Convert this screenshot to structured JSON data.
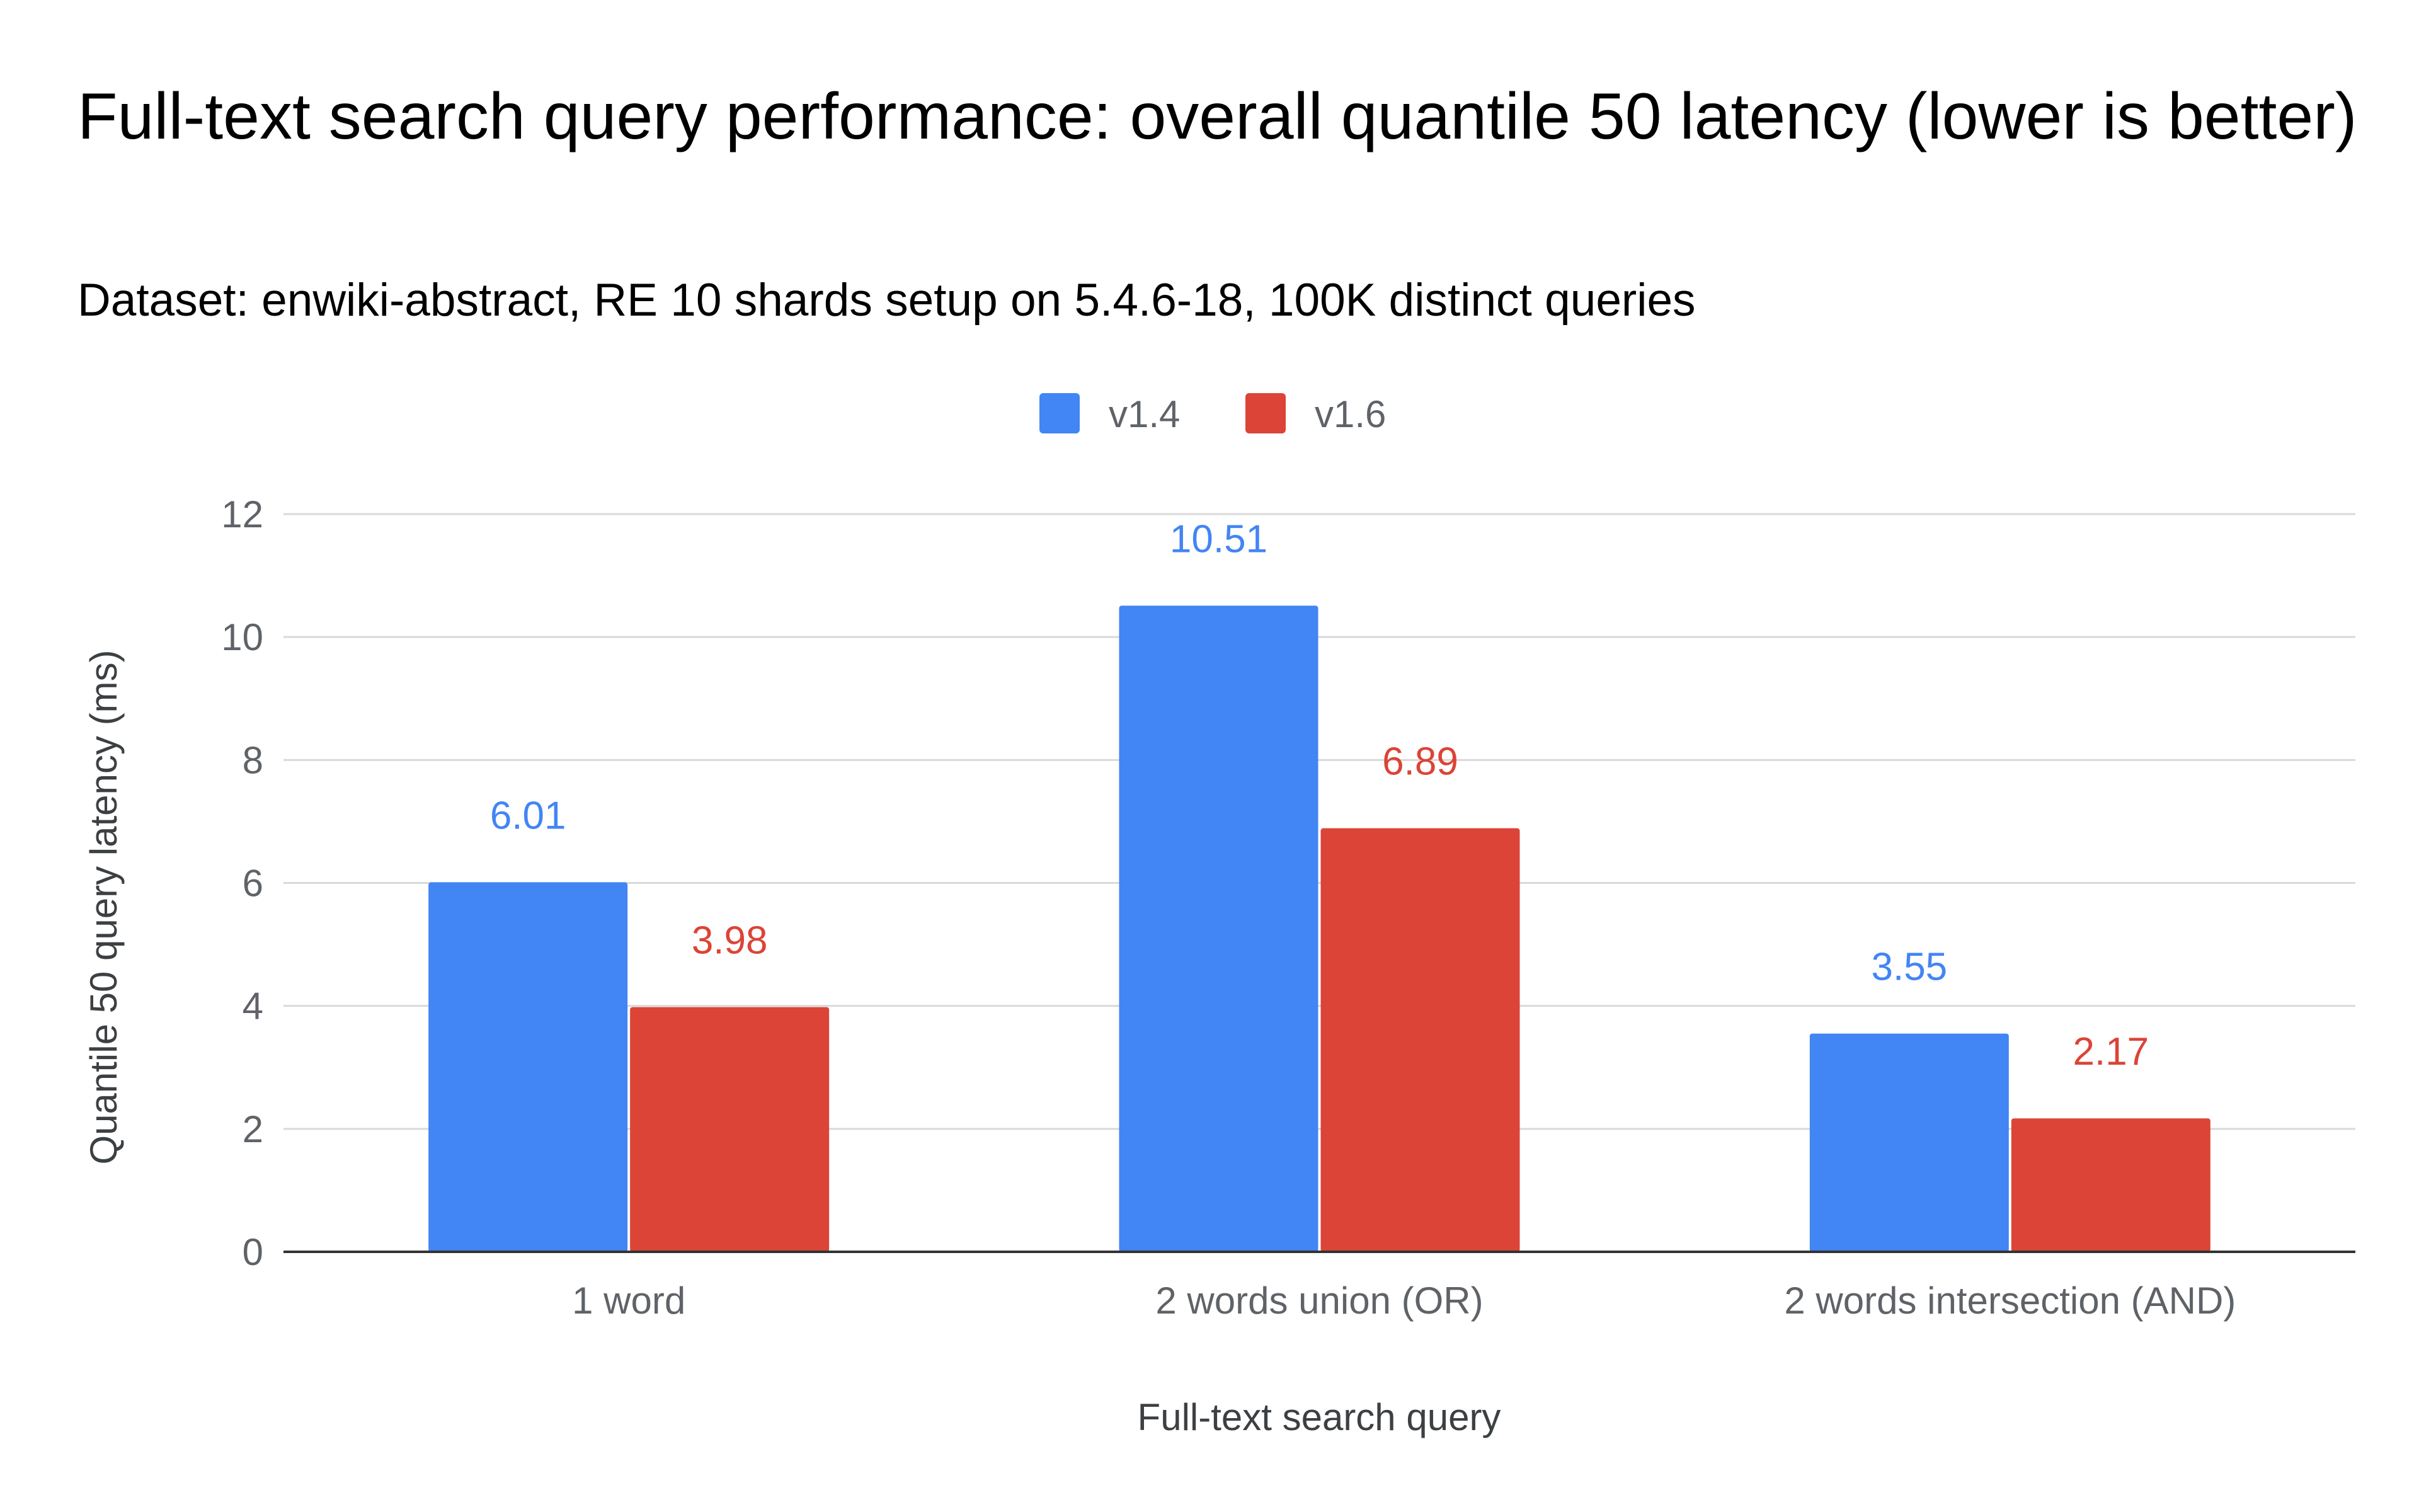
{
  "chart_data": {
    "type": "bar",
    "title": "Full-text search query performance: overall quantile 50 latency (lower is better)",
    "subtitle": "Dataset: enwiki-abstract, RE 10 shards setup on 5.4.6-18, 100K distinct queries",
    "xlabel": "Full-text search query",
    "ylabel": "Quantile 50 query latency (ms)",
    "categories": [
      "1 word",
      "2 words union (OR)",
      "2 words intersection (AND)"
    ],
    "series": [
      {
        "name": "v1.4",
        "color": "#4285f4",
        "values": [
          6.01,
          10.51,
          3.55
        ],
        "labels": [
          "6.01",
          "10.51",
          "3.55"
        ]
      },
      {
        "name": "v1.6",
        "color": "#db4437",
        "values": [
          3.98,
          6.89,
          2.17
        ],
        "labels": [
          "3.98",
          "6.89",
          "2.17"
        ]
      }
    ],
    "ylim": [
      0,
      12
    ],
    "yticks": [
      0,
      2,
      4,
      6,
      8,
      10,
      12
    ],
    "ytick_labels": [
      "0",
      "2",
      "4",
      "6",
      "8",
      "10",
      "12"
    ],
    "grid": true,
    "legend_position": "top-center"
  }
}
